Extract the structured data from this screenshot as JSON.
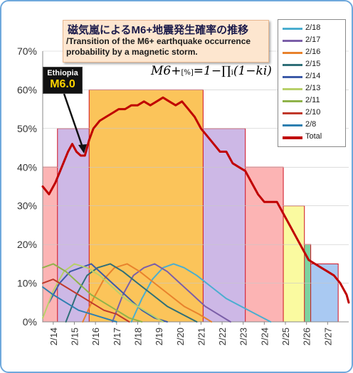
{
  "title_jp": "磁気嵐によるM6+地震発生確率の推移",
  "title_en": "/Transition of the M6+ earthquake occurrence probability by a magnetic storm.",
  "formula": {
    "lead": "M6+",
    "unit": "[%]",
    "body": "=1−∏",
    "sub": "i",
    "tail": "(1−ki)"
  },
  "annotation": {
    "name": "Ethiopia",
    "magnitude": "M6.0"
  },
  "chart_data": {
    "type": "line",
    "ylim": [
      0,
      70
    ],
    "y_ticks": [
      "0%",
      "10%",
      "20%",
      "30%",
      "40%",
      "50%",
      "60%",
      "70%"
    ],
    "x_ticks": [
      "2/14",
      "2/15",
      "2/16",
      "2/17",
      "2/18",
      "2/19",
      "2/20",
      "2/21",
      "2/22",
      "2/23",
      "2/24",
      "2/25",
      "2/26",
      "2/27"
    ],
    "x_range": [
      13.5,
      28.0
    ],
    "bands": [
      {
        "label": "15%",
        "value": 15,
        "start": 13.5,
        "end": 27.5,
        "color": "#a9c9f2"
      },
      {
        "label": "20%",
        "value": 20,
        "start": 13.5,
        "end": 26.2,
        "color": "#7dd3a0"
      },
      {
        "label": "30%",
        "value": 30,
        "start": 13.5,
        "end": 25.9,
        "color": "#fafaa0"
      },
      {
        "label": "40%",
        "value": 40,
        "start": 13.5,
        "end": 24.9,
        "color": "#fcb4b4"
      },
      {
        "label": "50%",
        "value": 50,
        "start": 14.2,
        "end": 23.1,
        "color": "#cdb8e6"
      },
      {
        "label": "60%",
        "value": 60,
        "start": 15.7,
        "end": 21.1,
        "color": "#fbc45a"
      }
    ],
    "series": [
      {
        "name": "2/18",
        "color": "#4aaed0",
        "points": [
          [
            17.7,
            0
          ],
          [
            18.2,
            6
          ],
          [
            18.7,
            11
          ],
          [
            19.2,
            14
          ],
          [
            19.7,
            15
          ],
          [
            20.2,
            14
          ],
          [
            20.8,
            12
          ],
          [
            21.5,
            9
          ],
          [
            22.2,
            6
          ],
          [
            22.9,
            4
          ],
          [
            23.6,
            2
          ],
          [
            24.3,
            0
          ]
        ]
      },
      {
        "name": "2/17",
        "color": "#7b5fa8",
        "points": [
          [
            16.8,
            0
          ],
          [
            17.3,
            7
          ],
          [
            17.8,
            12
          ],
          [
            18.3,
            14
          ],
          [
            18.8,
            15
          ],
          [
            19.4,
            13
          ],
          [
            20.0,
            10
          ],
          [
            20.6,
            7
          ],
          [
            21.2,
            4
          ],
          [
            21.8,
            2
          ],
          [
            22.4,
            0
          ]
        ]
      },
      {
        "name": "2/16",
        "color": "#e8822c",
        "points": [
          [
            15.4,
            0
          ],
          [
            15.9,
            6
          ],
          [
            16.4,
            11
          ],
          [
            16.9,
            14
          ],
          [
            17.5,
            15
          ],
          [
            18.1,
            13
          ],
          [
            18.8,
            10
          ],
          [
            19.5,
            7
          ],
          [
            20.2,
            4
          ],
          [
            20.9,
            2
          ],
          [
            21.5,
            0
          ]
        ]
      },
      {
        "name": "2/15",
        "color": "#2f6f78",
        "points": [
          [
            14.6,
            0
          ],
          [
            15.1,
            7
          ],
          [
            15.6,
            12
          ],
          [
            16.1,
            14
          ],
          [
            16.7,
            15
          ],
          [
            17.3,
            13
          ],
          [
            18.0,
            10
          ],
          [
            18.7,
            7
          ],
          [
            19.4,
            4
          ],
          [
            20.1,
            2
          ],
          [
            20.8,
            0
          ]
        ]
      },
      {
        "name": "2/14",
        "color": "#3d5aa8",
        "points": [
          [
            13.8,
            5
          ],
          [
            14.3,
            10
          ],
          [
            14.8,
            13
          ],
          [
            15.3,
            14
          ],
          [
            15.8,
            15
          ],
          [
            16.4,
            12
          ],
          [
            17.0,
            9
          ],
          [
            17.6,
            6
          ],
          [
            18.2,
            3
          ],
          [
            18.8,
            1
          ],
          [
            19.4,
            0
          ]
        ]
      },
      {
        "name": "2/13",
        "color": "#b8d06a",
        "points": [
          [
            13.5,
            1
          ],
          [
            14.0,
            8
          ],
          [
            14.5,
            13
          ],
          [
            15.0,
            15
          ],
          [
            15.6,
            14
          ],
          [
            16.2,
            12
          ],
          [
            16.8,
            9
          ],
          [
            17.4,
            6
          ],
          [
            18.0,
            4
          ],
          [
            18.6,
            2
          ],
          [
            19.2,
            0
          ]
        ]
      },
      {
        "name": "2/11",
        "color": "#8fb34a",
        "points": [
          [
            13.5,
            14
          ],
          [
            14.0,
            15
          ],
          [
            14.6,
            13
          ],
          [
            15.2,
            10
          ],
          [
            15.8,
            7
          ],
          [
            16.4,
            5
          ],
          [
            17.0,
            3
          ],
          [
            17.6,
            1
          ],
          [
            18.2,
            0
          ]
        ]
      },
      {
        "name": "2/10",
        "color": "#c0392b",
        "points": [
          [
            13.5,
            10
          ],
          [
            14.0,
            11
          ],
          [
            14.6,
            9
          ],
          [
            15.2,
            7
          ],
          [
            15.8,
            5
          ],
          [
            16.4,
            3
          ],
          [
            17.0,
            2
          ],
          [
            17.6,
            0
          ]
        ]
      },
      {
        "name": "2/8",
        "color": "#2d7fb0",
        "points": [
          [
            13.5,
            9
          ],
          [
            14.0,
            7
          ],
          [
            14.6,
            5
          ],
          [
            15.2,
            3
          ],
          [
            15.8,
            2
          ],
          [
            16.4,
            1
          ],
          [
            17.0,
            0
          ]
        ]
      },
      {
        "name": "Total",
        "color": "#c00000",
        "points": [
          [
            13.5,
            35
          ],
          [
            13.8,
            33
          ],
          [
            14.1,
            36
          ],
          [
            14.4,
            40
          ],
          [
            14.7,
            44
          ],
          [
            14.9,
            46
          ],
          [
            15.1,
            44
          ],
          [
            15.3,
            43
          ],
          [
            15.5,
            43
          ],
          [
            15.7,
            47
          ],
          [
            15.9,
            50
          ],
          [
            16.2,
            52
          ],
          [
            16.5,
            53
          ],
          [
            16.8,
            54
          ],
          [
            17.1,
            55
          ],
          [
            17.4,
            55
          ],
          [
            17.7,
            56
          ],
          [
            18.0,
            56
          ],
          [
            18.3,
            57
          ],
          [
            18.6,
            56
          ],
          [
            18.9,
            57
          ],
          [
            19.2,
            58
          ],
          [
            19.5,
            57
          ],
          [
            19.8,
            56
          ],
          [
            20.1,
            57
          ],
          [
            20.4,
            55
          ],
          [
            20.7,
            53
          ],
          [
            21.0,
            50
          ],
          [
            21.3,
            48
          ],
          [
            21.6,
            46
          ],
          [
            21.9,
            44
          ],
          [
            22.2,
            44
          ],
          [
            22.5,
            41
          ],
          [
            22.8,
            40
          ],
          [
            23.1,
            39
          ],
          [
            23.4,
            36
          ],
          [
            23.7,
            33
          ],
          [
            24.0,
            31
          ],
          [
            24.3,
            31
          ],
          [
            24.6,
            31
          ],
          [
            24.9,
            28
          ],
          [
            25.2,
            25
          ],
          [
            25.5,
            22
          ],
          [
            25.8,
            19
          ],
          [
            26.1,
            16
          ],
          [
            26.4,
            15
          ],
          [
            26.7,
            14
          ],
          [
            27.0,
            13
          ],
          [
            27.3,
            12
          ],
          [
            27.6,
            10
          ],
          [
            27.9,
            7
          ],
          [
            28.0,
            5
          ]
        ]
      }
    ]
  }
}
